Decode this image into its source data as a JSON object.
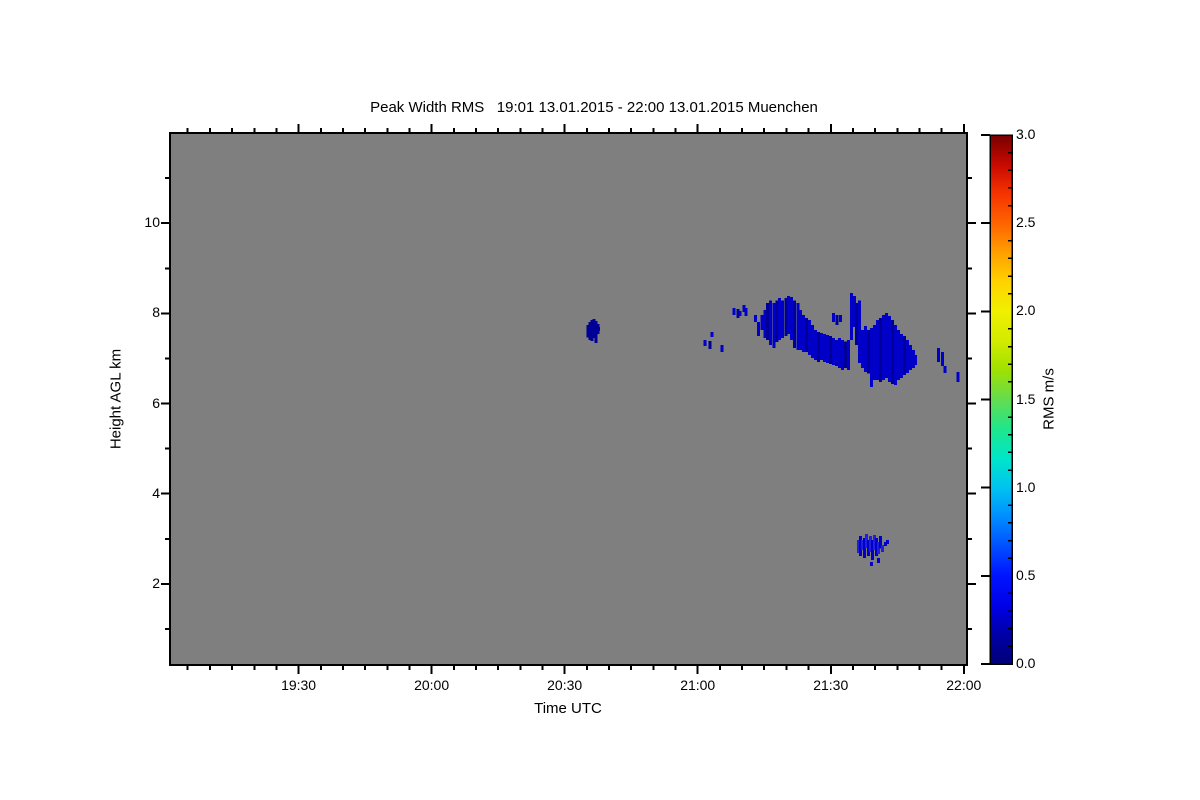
{
  "title": "Peak Width RMS   19:01 13.01.2015 - 22:00 13.01.2015 Muenchen",
  "station": "Muenchen",
  "time_span": "19:01 13.01.2015 - 22:00 13.01.2015",
  "axes": {
    "x": {
      "label": "Time UTC",
      "range_hours": [
        19.0167,
        22.012
      ],
      "major_ticks": [
        {
          "t": 19.5,
          "label": "19:30"
        },
        {
          "t": 20.0,
          "label": "20:00"
        },
        {
          "t": 20.5,
          "label": "20:30"
        },
        {
          "t": 21.0,
          "label": "21:00"
        },
        {
          "t": 21.5,
          "label": "21:30"
        },
        {
          "t": 22.0,
          "label": "22:00"
        }
      ],
      "minor_step_minutes": 5
    },
    "y": {
      "label": "Height AGL km",
      "range_km": [
        0.2,
        12.0
      ],
      "major_ticks": [
        {
          "h": 2,
          "label": "2"
        },
        {
          "h": 4,
          "label": "4"
        },
        {
          "h": 6,
          "label": "6"
        },
        {
          "h": 8,
          "label": "8"
        },
        {
          "h": 10,
          "label": "10"
        }
      ],
      "minor_ticks": [
        1,
        3,
        5,
        7,
        9,
        11
      ]
    }
  },
  "plot_background_color": "#7F7F7F",
  "colorbar": {
    "label": "RMS m/s",
    "range": [
      0.0,
      3.0
    ],
    "major_ticks": [
      {
        "v": 0.0,
        "label": "0.0"
      },
      {
        "v": 0.5,
        "label": "0.5"
      },
      {
        "v": 1.0,
        "label": "1.0"
      },
      {
        "v": 1.5,
        "label": "1.5"
      },
      {
        "v": 2.0,
        "label": "2.0"
      },
      {
        "v": 2.5,
        "label": "2.5"
      },
      {
        "v": 3.0,
        "label": "3.0"
      }
    ],
    "minor_step": 0.1,
    "gradient_stops": [
      {
        "v": 0.0,
        "color": "#000078"
      },
      {
        "v": 0.17,
        "color": "#0000A8"
      },
      {
        "v": 0.33,
        "color": "#0000E6"
      },
      {
        "v": 0.5,
        "color": "#0014FF"
      },
      {
        "v": 0.67,
        "color": "#0050FF"
      },
      {
        "v": 0.83,
        "color": "#008CFF"
      },
      {
        "v": 1.0,
        "color": "#00C3F0"
      },
      {
        "v": 1.17,
        "color": "#00E6C8"
      },
      {
        "v": 1.33,
        "color": "#1EE68C"
      },
      {
        "v": 1.5,
        "color": "#64DC50"
      },
      {
        "v": 1.67,
        "color": "#A0E100"
      },
      {
        "v": 1.83,
        "color": "#D2EB00"
      },
      {
        "v": 2.0,
        "color": "#F0F000"
      },
      {
        "v": 2.17,
        "color": "#FFD200"
      },
      {
        "v": 2.33,
        "color": "#FFA000"
      },
      {
        "v": 2.5,
        "color": "#FF6400"
      },
      {
        "v": 2.67,
        "color": "#F53200"
      },
      {
        "v": 2.83,
        "color": "#C80A00"
      },
      {
        "v": 3.0,
        "color": "#780000"
      }
    ]
  },
  "chart_data": {
    "type": "heatmap",
    "title": "Peak Width RMS",
    "xlabel": "Time UTC",
    "ylabel": "Height AGL km",
    "value_label": "RMS m/s",
    "x_range_hours_utc": [
      19.0167,
      22.012
    ],
    "y_range_km": [
      0.2,
      12.0
    ],
    "value_range": [
      0.0,
      3.0
    ],
    "background_value": "no data (gray)",
    "shade_colors": [
      "#000096",
      "#0000C8",
      "#2020DC"
    ],
    "shade_values_rms": [
      0.05,
      0.15,
      0.3
    ],
    "echo_strokes_t_top_bot_shade": [
      [
        20.587,
        7.74,
        7.47,
        0
      ],
      [
        20.595,
        7.81,
        7.41,
        0
      ],
      [
        20.602,
        7.85,
        7.39,
        0
      ],
      [
        20.61,
        7.87,
        7.45,
        0
      ],
      [
        20.617,
        7.83,
        7.34,
        0
      ],
      [
        20.625,
        7.76,
        7.54,
        0
      ],
      [
        20.628,
        7.7,
        7.61,
        0
      ],
      [
        21.027,
        7.41,
        7.27,
        1
      ],
      [
        21.046,
        7.39,
        7.21,
        0
      ],
      [
        21.053,
        7.59,
        7.47,
        1
      ],
      [
        21.091,
        7.3,
        7.14,
        1
      ],
      [
        21.136,
        8.12,
        7.96,
        1
      ],
      [
        21.151,
        8.1,
        7.9,
        0
      ],
      [
        21.158,
        8.05,
        7.94,
        1
      ],
      [
        21.173,
        8.18,
        8.03,
        1
      ],
      [
        21.181,
        8.12,
        7.94,
        1
      ],
      [
        21.218,
        7.96,
        7.81,
        1
      ],
      [
        21.229,
        7.81,
        7.5,
        1
      ],
      [
        21.241,
        7.96,
        7.63,
        1
      ],
      [
        21.252,
        8.07,
        7.45,
        1
      ],
      [
        21.263,
        8.23,
        7.41,
        0
      ],
      [
        21.274,
        8.29,
        7.3,
        1
      ],
      [
        21.286,
        8.23,
        7.23,
        1
      ],
      [
        21.297,
        8.29,
        7.36,
        0
      ],
      [
        21.308,
        8.34,
        7.41,
        1
      ],
      [
        21.319,
        8.29,
        7.45,
        1
      ],
      [
        21.331,
        8.34,
        7.5,
        0
      ],
      [
        21.342,
        8.38,
        7.54,
        1
      ],
      [
        21.353,
        8.36,
        7.41,
        1
      ],
      [
        21.364,
        8.29,
        7.23,
        0
      ],
      [
        21.376,
        8.23,
        7.19,
        1
      ],
      [
        21.387,
        8.07,
        7.19,
        1
      ],
      [
        21.398,
        7.96,
        7.14,
        1
      ],
      [
        21.409,
        7.9,
        7.14,
        0
      ],
      [
        21.421,
        7.85,
        7.08,
        1
      ],
      [
        21.432,
        7.74,
        7.01,
        1
      ],
      [
        21.443,
        7.63,
        6.97,
        1
      ],
      [
        21.454,
        7.59,
        6.92,
        0
      ],
      [
        21.465,
        7.56,
        6.97,
        1
      ],
      [
        21.477,
        7.54,
        6.92,
        1
      ],
      [
        21.488,
        7.52,
        6.9,
        1
      ],
      [
        21.499,
        7.5,
        6.88,
        0
      ],
      [
        21.51,
        7.45,
        6.85,
        1
      ],
      [
        21.522,
        7.41,
        6.83,
        1
      ],
      [
        21.533,
        7.45,
        6.79,
        1
      ],
      [
        21.544,
        7.41,
        6.74,
        1
      ],
      [
        21.555,
        7.38,
        6.79,
        0
      ],
      [
        21.567,
        7.41,
        6.74,
        1
      ],
      [
        21.51,
        8.01,
        7.81,
        1
      ],
      [
        21.524,
        7.96,
        7.74,
        0
      ],
      [
        21.536,
        7.96,
        7.81,
        1
      ],
      [
        21.578,
        8.45,
        7.41,
        1
      ],
      [
        21.589,
        8.38,
        7.7,
        1
      ],
      [
        21.597,
        8.23,
        7.3,
        0
      ],
      [
        21.608,
        8.29,
        6.9,
        1
      ],
      [
        21.619,
        7.63,
        6.79,
        1
      ],
      [
        21.63,
        7.72,
        6.7,
        1
      ],
      [
        21.642,
        7.63,
        6.66,
        0
      ],
      [
        21.653,
        7.67,
        6.37,
        1
      ],
      [
        21.664,
        7.74,
        6.52,
        1
      ],
      [
        21.675,
        7.85,
        6.52,
        1
      ],
      [
        21.687,
        7.9,
        6.48,
        0
      ],
      [
        21.698,
        7.96,
        6.52,
        1
      ],
      [
        21.709,
        8.01,
        6.57,
        1
      ],
      [
        21.72,
        7.94,
        6.48,
        1
      ],
      [
        21.732,
        7.85,
        6.43,
        0
      ],
      [
        21.743,
        7.74,
        6.41,
        1
      ],
      [
        21.754,
        7.63,
        6.52,
        1
      ],
      [
        21.765,
        7.54,
        6.57,
        1
      ],
      [
        21.777,
        7.5,
        6.63,
        0
      ],
      [
        21.788,
        7.41,
        6.68,
        1
      ],
      [
        21.799,
        7.3,
        6.74,
        1
      ],
      [
        21.81,
        7.19,
        6.79,
        1
      ],
      [
        21.818,
        7.08,
        6.85,
        1
      ],
      [
        21.904,
        7.23,
        6.92,
        1
      ],
      [
        21.919,
        7.14,
        6.83,
        1
      ],
      [
        21.93,
        6.83,
        6.68,
        1
      ],
      [
        21.979,
        6.7,
        6.48,
        1
      ],
      [
        21.604,
        2.97,
        2.68,
        2
      ],
      [
        21.611,
        3.06,
        2.62,
        1
      ],
      [
        21.619,
        2.97,
        2.75,
        2
      ],
      [
        21.626,
        3.02,
        2.57,
        1
      ],
      [
        21.634,
        3.11,
        2.79,
        2
      ],
      [
        21.642,
        2.97,
        2.62,
        1
      ],
      [
        21.649,
        3.06,
        2.71,
        2
      ],
      [
        21.657,
        2.97,
        2.53,
        1
      ],
      [
        21.664,
        3.08,
        2.75,
        2
      ],
      [
        21.672,
        3.02,
        2.62,
        1
      ],
      [
        21.679,
        2.93,
        2.66,
        2
      ],
      [
        21.687,
        3.06,
        2.79,
        1
      ],
      [
        21.694,
        2.86,
        2.71,
        2
      ],
      [
        21.705,
        2.93,
        2.84,
        1
      ],
      [
        21.713,
        2.97,
        2.88,
        1
      ],
      [
        21.653,
        2.48,
        2.4,
        1
      ],
      [
        21.679,
        2.57,
        2.46,
        1
      ]
    ]
  }
}
